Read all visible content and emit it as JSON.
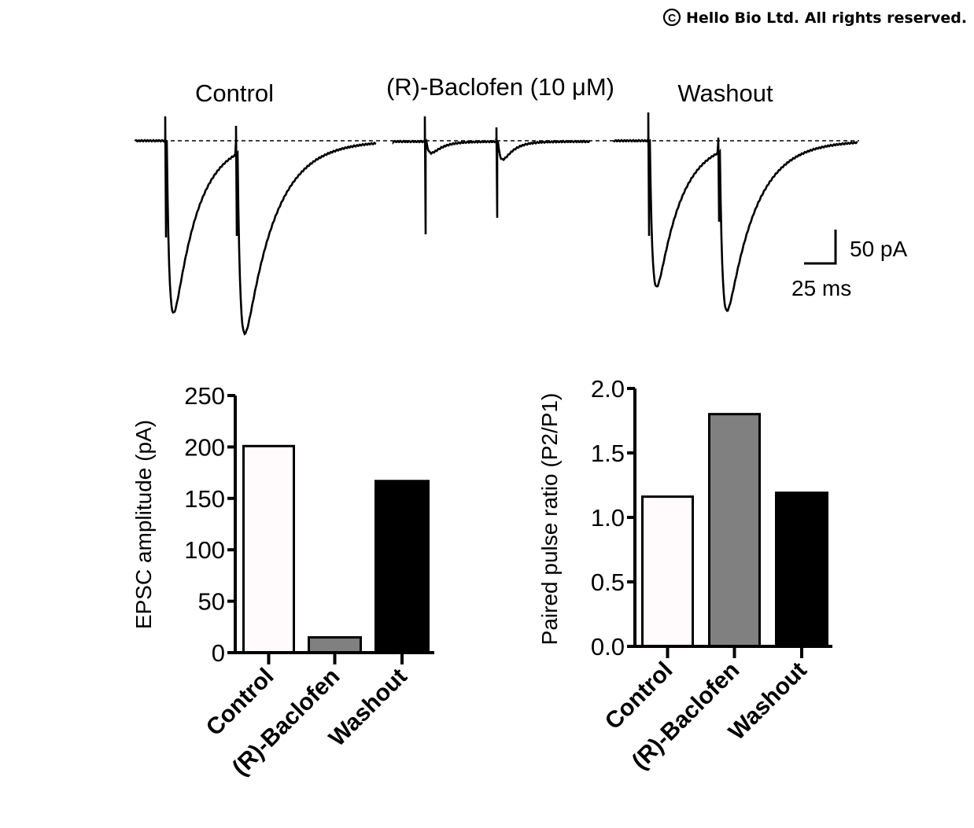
{
  "copyright": "Hello Bio Ltd. All rights reserved.",
  "traces": {
    "conditions": [
      "Control",
      "(R)-Baclofen (10 μM)",
      "Washout"
    ],
    "scale_bar": {
      "current": "50 pA",
      "time": "25 ms"
    }
  },
  "chart_data": [
    {
      "type": "bar",
      "categories": [
        "Control",
        "(R)-Baclofen",
        "Washout"
      ],
      "values": [
        202,
        16,
        168
      ],
      "colors": [
        "#fffbfc",
        "#808080",
        "#000000"
      ],
      "xlabel": "",
      "ylabel": "EPSC amplitude (pA)",
      "ylim": [
        0,
        250
      ],
      "yticks": [
        "0",
        "50",
        "100",
        "150",
        "200",
        "250"
      ],
      "grid": false
    },
    {
      "type": "bar",
      "categories": [
        "Control",
        "(R)-Baclofen",
        "Washout"
      ],
      "values": [
        1.17,
        1.81,
        1.2
      ],
      "colors": [
        "#fffbfc",
        "#808080",
        "#000000"
      ],
      "xlabel": "",
      "ylabel": "Paired pulse ratio (P2/P1)",
      "ylim": [
        0,
        2.0
      ],
      "yticks": [
        "0.0",
        "0.5",
        "1.0",
        "1.5",
        "2.0"
      ],
      "grid": false
    }
  ]
}
